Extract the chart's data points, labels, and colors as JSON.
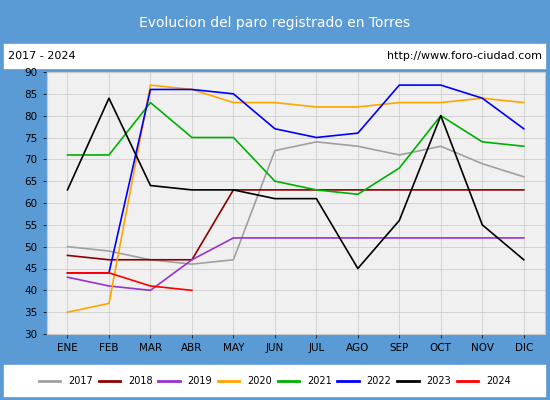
{
  "title": "Evolucion del paro registrado en Torres",
  "subtitle_left": "2017 - 2024",
  "subtitle_right": "http://www.foro-ciudad.com",
  "xlabel_months": [
    "ENE",
    "FEB",
    "MAR",
    "ABR",
    "MAY",
    "JUN",
    "JUL",
    "AGO",
    "SEP",
    "OCT",
    "NOV",
    "DIC"
  ],
  "ylim": [
    30,
    90
  ],
  "yticks": [
    30,
    35,
    40,
    45,
    50,
    55,
    60,
    65,
    70,
    75,
    80,
    85,
    90
  ],
  "series": {
    "2017": {
      "color": "#a0a0a0",
      "data": [
        50,
        49,
        47,
        46,
        47,
        72,
        74,
        73,
        71,
        73,
        69,
        66
      ]
    },
    "2018": {
      "color": "#8b0000",
      "data": [
        48,
        47,
        47,
        47,
        63,
        63,
        63,
        63,
        63,
        63,
        63,
        63
      ]
    },
    "2019": {
      "color": "#9932cc",
      "data": [
        43,
        41,
        40,
        47,
        52,
        52,
        52,
        52,
        52,
        52,
        52,
        52
      ]
    },
    "2020": {
      "color": "#ffa500",
      "data": [
        35,
        37,
        87,
        86,
        83,
        83,
        82,
        82,
        83,
        83,
        84,
        83
      ]
    },
    "2021": {
      "color": "#00b000",
      "data": [
        71,
        71,
        83,
        75,
        75,
        65,
        63,
        62,
        68,
        80,
        74,
        73
      ]
    },
    "2022": {
      "color": "#0000ff",
      "data": [
        44,
        44,
        86,
        86,
        85,
        77,
        75,
        76,
        87,
        87,
        84,
        77
      ]
    },
    "2023": {
      "color": "#000000",
      "data": [
        63,
        84,
        64,
        63,
        63,
        61,
        61,
        45,
        56,
        80,
        55,
        47
      ]
    },
    "2024": {
      "color": "#ff0000",
      "data": [
        44,
        44,
        41,
        40,
        null,
        null,
        null,
        null,
        null,
        null,
        null,
        null
      ]
    }
  },
  "border_color": "#5b9bd5",
  "plot_bg_color": "#f0f0f0",
  "header_bg": "#5b9bd5",
  "header_text_color": "#ffffff"
}
